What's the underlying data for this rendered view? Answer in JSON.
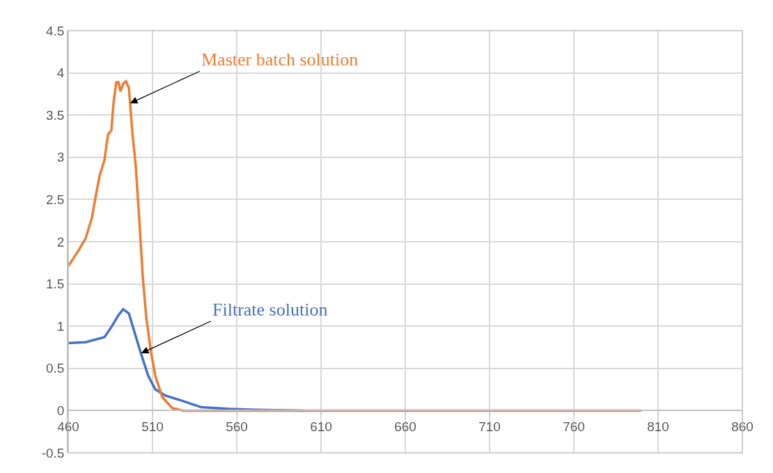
{
  "chart_data": {
    "type": "line",
    "xlim": [
      460,
      860
    ],
    "xticks": [
      460,
      510,
      560,
      610,
      660,
      710,
      760,
      810,
      860
    ],
    "ylim": [
      -0.5,
      4.5
    ],
    "yticks": [
      -0.5,
      0,
      0.5,
      1,
      1.5,
      2,
      2.5,
      3,
      3.5,
      4,
      4.5
    ],
    "grid": true,
    "marker": "none",
    "line_style": "solid",
    "series": [
      {
        "color": "#ed7d31",
        "x": [
          460,
          466.2,
          470.3,
          474,
          476.5,
          478.6,
          481.5,
          483.6,
          485.6,
          486.9,
          488.5,
          489.8,
          491,
          492.6,
          494.3,
          496,
          498,
          500,
          502.1,
          504.2,
          506.3,
          509.2,
          511.7,
          515.8,
          521.6,
          528,
          550,
          600,
          700,
          800
        ],
        "values": [
          1.71,
          1.9,
          2.04,
          2.28,
          2.56,
          2.78,
          2.97,
          3.27,
          3.32,
          3.65,
          3.89,
          3.89,
          3.78,
          3.87,
          3.9,
          3.82,
          3.3,
          2.91,
          2.28,
          1.59,
          1.1,
          0.68,
          0.41,
          0.16,
          0.03,
          0,
          0,
          0,
          0,
          0
        ]
      },
      {
        "color": "#4472c4",
        "x": [
          460,
          470.3,
          481.5,
          485.6,
          489.8,
          492.6,
          496,
          499.3,
          503.4,
          507.5,
          511.7,
          517.4,
          527,
          539,
          556,
          571,
          600
        ],
        "values": [
          0.8,
          0.81,
          0.87,
          0.99,
          1.13,
          1.2,
          1.15,
          0.93,
          0.66,
          0.41,
          0.25,
          0.18,
          0.12,
          0.04,
          0.02,
          0.01,
          0
        ]
      }
    ],
    "annotations": [
      {
        "text": "Master batch solution",
        "x": 496.7,
        "y": 3.64
      },
      {
        "text": "Filtrate solution",
        "x": 503.3,
        "y": 0.68
      }
    ]
  }
}
